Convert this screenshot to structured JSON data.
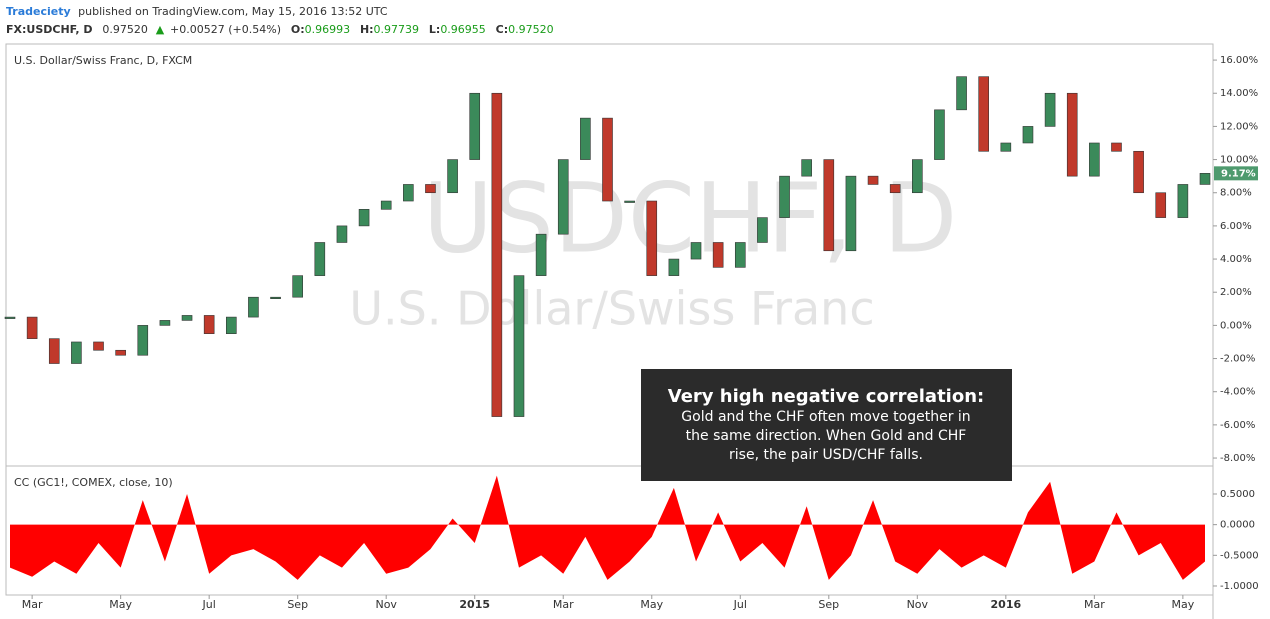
{
  "header": {
    "author": "Tradeciety",
    "published": "published on TradingView.com, May 15, 2016 13:52 UTC",
    "symbol": "FX:USDCHF, D",
    "last": "0.97520",
    "change": "+0.00527 (+0.54%)",
    "quotes": [
      {
        "label": "O:",
        "value": "0.96993"
      },
      {
        "label": "H:",
        "value": "0.97739"
      },
      {
        "label": "L:",
        "value": "0.96955"
      },
      {
        "label": "C:",
        "value": "0.97520"
      }
    ]
  },
  "chart_data": [
    {
      "type": "candlestick",
      "title": "U.S. Dollar/Swiss Franc, D, FXCM",
      "watermark": [
        "USDCHF, D",
        "U.S. Dollar/Swiss Franc"
      ],
      "price_badge": "9.17%",
      "categories": [
        null,
        "Mar",
        null,
        null,
        null,
        "May",
        null,
        null,
        null,
        "Jul",
        null,
        null,
        null,
        "Sep",
        null,
        null,
        null,
        "Nov",
        null,
        null,
        null,
        "2015",
        null,
        null,
        null,
        "Mar",
        null,
        null,
        null,
        "May",
        null,
        null,
        null,
        "Jul",
        null,
        null,
        null,
        "Sep",
        null,
        null,
        null,
        "Nov",
        null,
        null,
        null,
        "2016",
        null,
        null,
        null,
        "Mar",
        null,
        null,
        null,
        "May",
        null
      ],
      "series": [
        {
          "name": "USDCHF",
          "up_color": "#3b8a5a",
          "down_color": "#c0392b",
          "values": [
            0.5,
            -0.8,
            -2.3,
            -1,
            -1.5,
            -1.8,
            0,
            0.3,
            0.6,
            -0.5,
            0.5,
            1.7,
            1.7,
            3,
            5,
            6,
            7,
            7.5,
            8.5,
            8,
            10,
            14,
            -5.5,
            3,
            5.5,
            10,
            12.5,
            7.5,
            7.5,
            3,
            4,
            5,
            3.5,
            5,
            6.5,
            9,
            10,
            4.5,
            9,
            8.5,
            8,
            10,
            13,
            15,
            10.5,
            11,
            12,
            14,
            9,
            11,
            10.5,
            8,
            6.5,
            8.5,
            9.17
          ]
        }
      ],
      "ylim": [
        -8.42,
        16.97
      ],
      "yticks": [
        {
          "value": 16,
          "label": "16.00%"
        },
        {
          "value": 14,
          "label": "14.00%"
        },
        {
          "value": 12,
          "label": "12.00%"
        },
        {
          "value": 10,
          "label": "10.00%"
        },
        {
          "value": 8,
          "label": "8.00%"
        },
        {
          "value": 6,
          "label": "6.00%"
        },
        {
          "value": 4,
          "label": "4.00%"
        },
        {
          "value": 2,
          "label": "2.00%"
        },
        {
          "value": 0,
          "label": "0.00%"
        },
        {
          "value": -2,
          "label": "-2.00%"
        },
        {
          "value": -4,
          "label": "-4.00%"
        },
        {
          "value": -6,
          "label": "-6.00%"
        },
        {
          "value": -8,
          "label": "-8.00%"
        }
      ],
      "grid": false,
      "annotation": {
        "title": "Very high negative correlation:",
        "lines": [
          "Gold and the CHF often move together in",
          "the same direction. When Gold and CHF",
          "rise, the pair USD/CHF falls."
        ]
      }
    },
    {
      "type": "area",
      "title": "CC (GC1!, COMEX, close, 10)",
      "series": [
        {
          "name": "CC",
          "color": "#ff0000",
          "values": [
            -0.7,
            -0.85,
            -0.6,
            -0.8,
            -0.3,
            -0.7,
            0.4,
            -0.6,
            0.5,
            -0.8,
            -0.5,
            -0.4,
            -0.6,
            -0.9,
            -0.5,
            -0.7,
            -0.3,
            -0.8,
            -0.7,
            -0.4,
            0.1,
            -0.3,
            0.8,
            -0.7,
            -0.5,
            -0.8,
            -0.2,
            -0.9,
            -0.6,
            -0.2,
            0.6,
            -0.6,
            0.2,
            -0.6,
            -0.3,
            -0.7,
            0.3,
            -0.9,
            -0.5,
            0.4,
            -0.6,
            -0.8,
            -0.4,
            -0.7,
            -0.5,
            -0.7,
            0.2,
            0.7,
            -0.8,
            -0.6,
            0.2,
            -0.5,
            -0.3,
            -0.9,
            -0.6
          ]
        }
      ],
      "ylim": [
        -1.147,
        0.94
      ],
      "yticks": [
        {
          "value": 0.5,
          "label": "0.5000"
        },
        {
          "value": 0,
          "label": "0.0000"
        },
        {
          "value": -0.5,
          "label": "-0.5000"
        },
        {
          "value": -1,
          "label": "-1.0000"
        }
      ],
      "grid": false
    }
  ]
}
